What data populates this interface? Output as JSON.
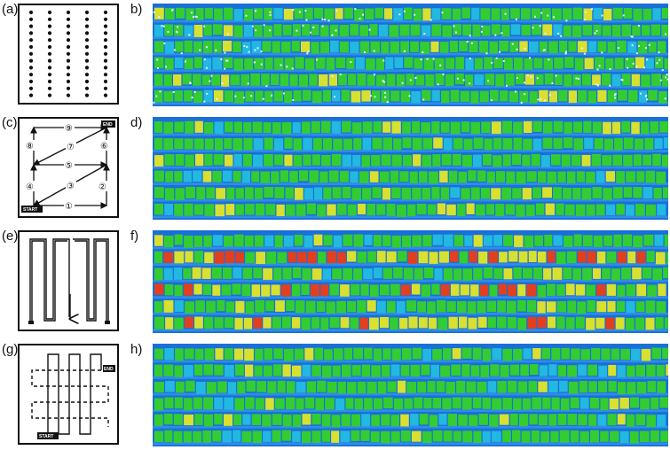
{
  "panels": [
    {
      "id": "a",
      "label": "(a)"
    },
    {
      "id": "b",
      "label": "b)"
    },
    {
      "id": "c",
      "label": "(c)"
    },
    {
      "id": "d",
      "label": "d)"
    },
    {
      "id": "e",
      "label": "(e)"
    },
    {
      "id": "f",
      "label": "f)"
    },
    {
      "id": "g",
      "label": "(g)"
    },
    {
      "id": "h",
      "label": "h)"
    }
  ],
  "diagram_c": {
    "start_label": "START",
    "end_label": "END",
    "steps": [
      "①",
      "②",
      "③",
      "④",
      "⑤",
      "⑥",
      "⑦",
      "⑧",
      "⑨"
    ]
  },
  "diagram_g": {
    "start_label": "START",
    "end_label": "END"
  },
  "colors": {
    "background_blue": "#1a6fd8",
    "alley_blue": "#2f8de8",
    "plot_green": "#33cc33",
    "plot_yellow": "#d8e030",
    "plot_red": "#e04020",
    "soil_cyan": "#22b8e0"
  }
}
